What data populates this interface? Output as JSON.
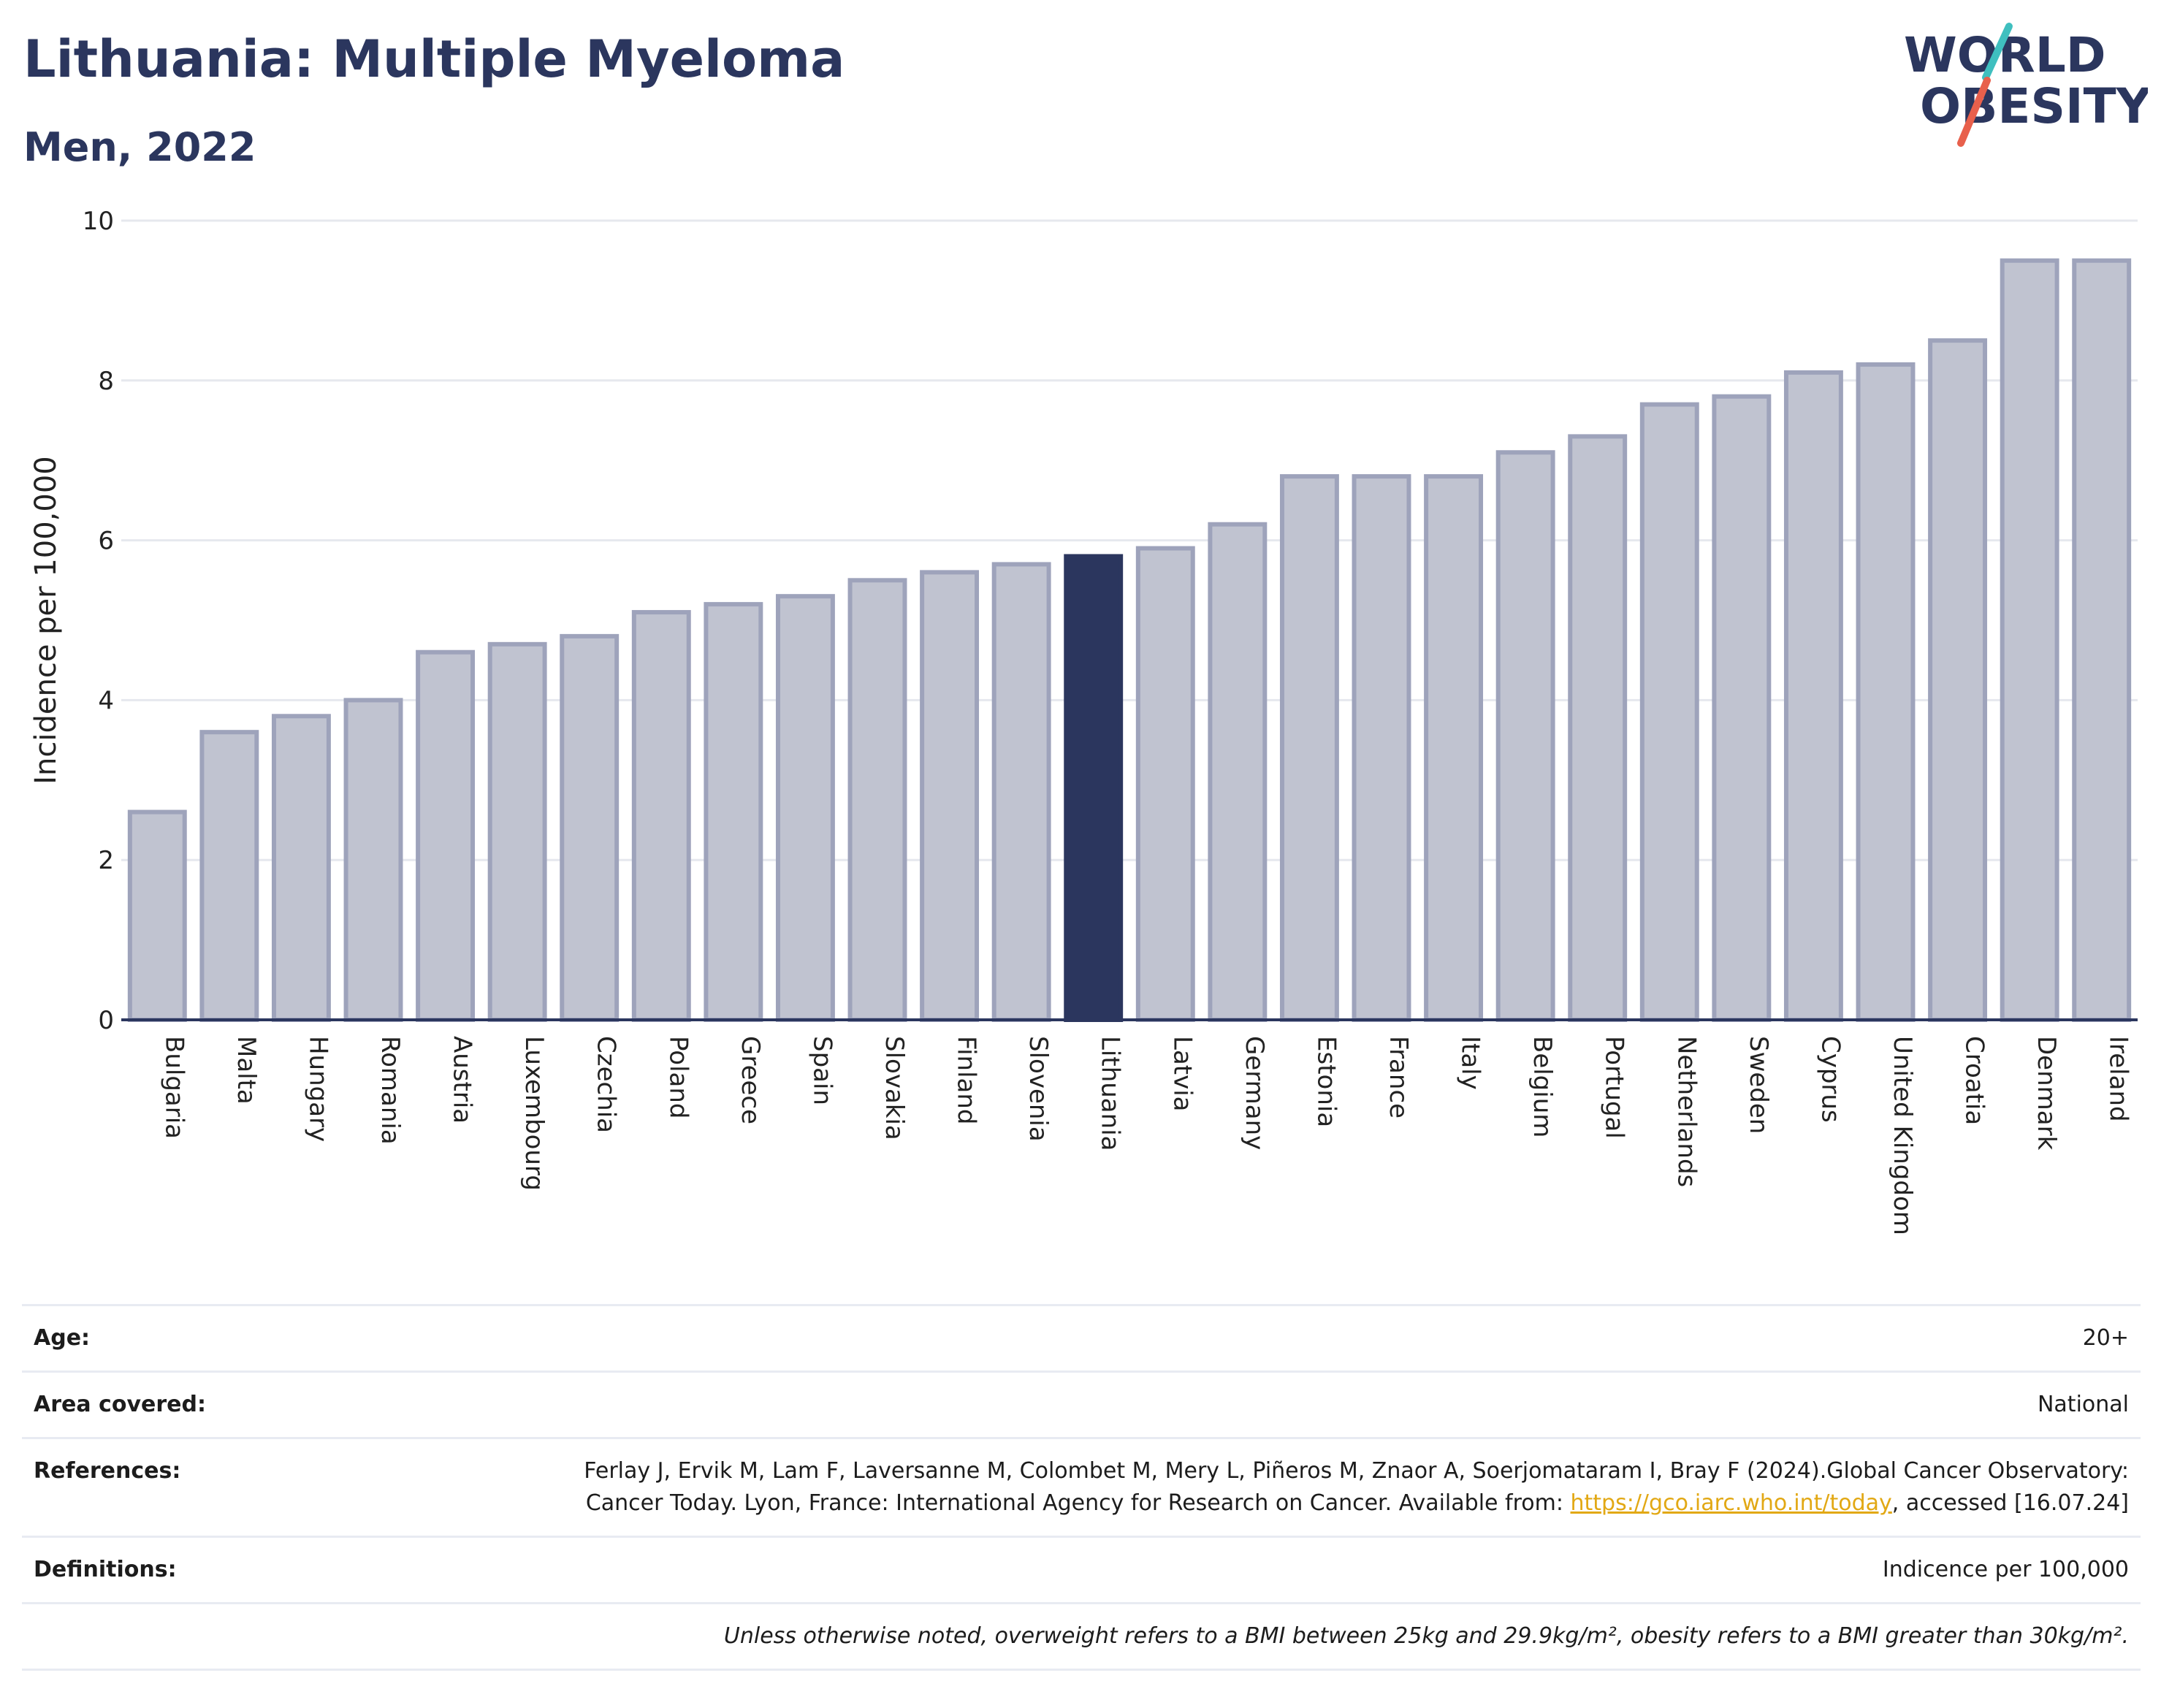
{
  "header": {
    "title": "Lithuania: Multiple Myeloma",
    "subtitle": "Men, 2022"
  },
  "logo": {
    "line1": "WORLD",
    "line2": "OBESITY",
    "colors": {
      "text": "#2b365e",
      "slash_red": "#e8604c",
      "slash_teal": "#3fbfbf"
    }
  },
  "chart_data": {
    "type": "bar",
    "title": "Lithuania: Multiple Myeloma",
    "subtitle": "Men, 2022",
    "xlabel": "",
    "ylabel": "Incidence per 100,000",
    "ylim": [
      0,
      10
    ],
    "yticks": [
      0,
      2,
      4,
      6,
      8,
      10
    ],
    "grid": true,
    "highlight": "Lithuania",
    "colors": {
      "bar": "#c0c3d0",
      "bar_edge": "#9ea3bb",
      "highlight": "#2b365e",
      "grid": "#e6e8ee",
      "axis": "#2b365e"
    },
    "categories": [
      "Bulgaria",
      "Malta",
      "Hungary",
      "Romania",
      "Austria",
      "Luxembourg",
      "Czechia",
      "Poland",
      "Greece",
      "Spain",
      "Slovakia",
      "Finland",
      "Slovenia",
      "Lithuania",
      "Latvia",
      "Germany",
      "Estonia",
      "France",
      "Italy",
      "Belgium",
      "Portugal",
      "Netherlands",
      "Sweden",
      "Cyprus",
      "United Kingdom",
      "Croatia",
      "Denmark",
      "Ireland"
    ],
    "values": [
      2.6,
      3.6,
      3.8,
      4.0,
      4.6,
      4.7,
      4.8,
      5.1,
      5.2,
      5.3,
      5.5,
      5.6,
      5.7,
      5.8,
      5.9,
      6.2,
      6.8,
      6.8,
      6.8,
      7.1,
      7.3,
      7.7,
      7.8,
      8.1,
      8.2,
      8.5,
      9.5,
      9.5
    ]
  },
  "info": {
    "age_label": "Age:",
    "age_value": "20+",
    "area_label": "Area covered:",
    "area_value": "National",
    "references_label": "References:",
    "references_text": "Ferlay J, Ervik M, Lam F, Laversanne M, Colombet M, Mery L, Piñeros M, Znaor A, Soerjomataram I, Bray F (2024).Global Cancer Observatory: Cancer Today. Lyon, France: International Agency for Research on Cancer. Available from:",
    "references_link": "https://gco.iarc.who.int/today",
    "references_suffix": ", accessed [16.07.24]",
    "definitions_label": "Definitions:",
    "definitions_value": "Indicence per 100,000",
    "note": "Unless otherwise noted, overweight refers to a BMI between 25kg and 29.9kg/m², obesity refers to a BMI greater than 30kg/m²."
  }
}
